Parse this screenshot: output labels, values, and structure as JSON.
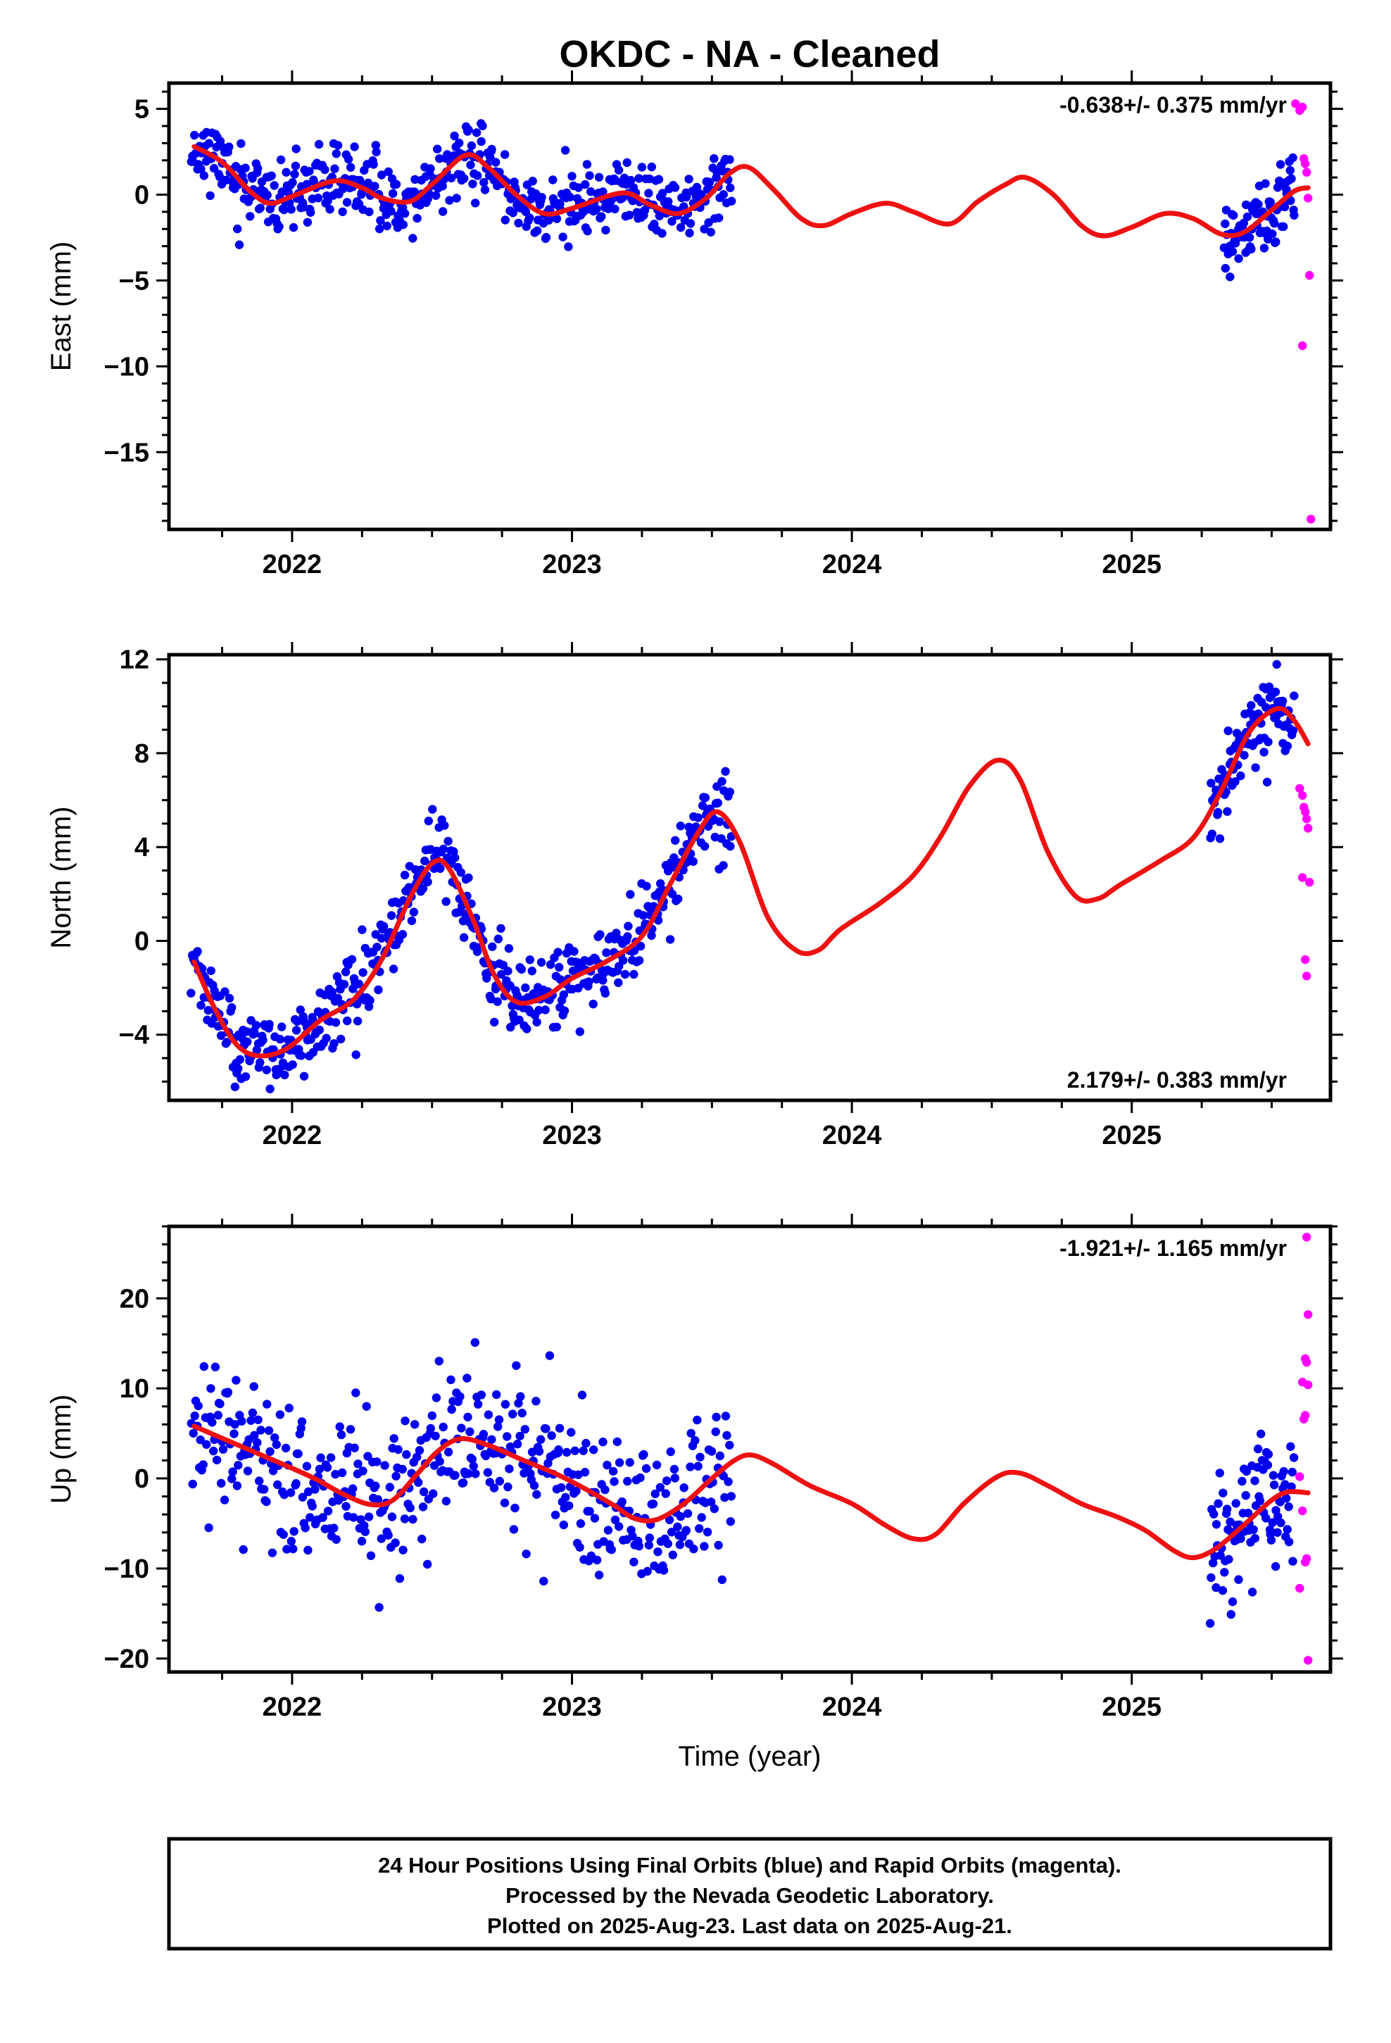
{
  "title": "OKDC  - NA - Cleaned",
  "xlabel": "Time (year)",
  "footer": {
    "line1": "24 Hour Positions Using Final Orbits (blue) and Rapid Orbits (magenta).",
    "line2": "Processed by the Nevada Geodetic Laboratory.",
    "line3": "Plotted on 2025-Aug-23. Last data on 2025-Aug-21."
  },
  "colors": {
    "final": "#0000ee",
    "rapid": "#ff00ff",
    "model": "#ee1111"
  },
  "chart_data": [
    {
      "type": "scatter",
      "ylabel": "East (mm)",
      "rate_text": "-0.638+/- 0.375 mm/yr",
      "rate_position": "top-right",
      "xlim": [
        2021.56,
        2025.71
      ],
      "ylim": [
        -19.5,
        6.5
      ],
      "x_ticks": [
        2022,
        2023,
        2024,
        2025
      ],
      "y_ticks": [
        5,
        0,
        -5,
        -10,
        -15
      ],
      "y_tick_labels": [
        "5",
        "0",
        "−5",
        "−10",
        "−15"
      ],
      "minor_y_step": 1,
      "final_orbit_data": {
        "seed": 11,
        "noise_std": 1.0,
        "ranges": [
          [
            2021.64,
            2023.57,
            520
          ],
          [
            2025.33,
            2025.58,
            90
          ]
        ]
      },
      "rapid_orbit_points": [
        [
          2025.585,
          5.3
        ],
        [
          2025.6,
          4.9
        ],
        [
          2025.61,
          5.1
        ],
        [
          2025.615,
          2.1
        ],
        [
          2025.62,
          1.8
        ],
        [
          2025.625,
          1.3
        ],
        [
          2025.63,
          -0.2
        ],
        [
          2025.635,
          -4.7
        ],
        [
          2025.61,
          -8.8
        ],
        [
          2025.64,
          -18.9
        ]
      ],
      "model": [
        [
          2021.65,
          2.8
        ],
        [
          2021.75,
          1.9
        ],
        [
          2021.85,
          0.2
        ],
        [
          2021.92,
          -0.5
        ],
        [
          2022.0,
          -0.1
        ],
        [
          2022.15,
          0.8
        ],
        [
          2022.25,
          0.4
        ],
        [
          2022.32,
          -0.2
        ],
        [
          2022.42,
          -0.4
        ],
        [
          2022.5,
          0.6
        ],
        [
          2022.62,
          2.3
        ],
        [
          2022.7,
          1.6
        ],
        [
          2022.8,
          0.0
        ],
        [
          2022.9,
          -1.1
        ],
        [
          2023.0,
          -0.8
        ],
        [
          2023.18,
          0.1
        ],
        [
          2023.28,
          -0.6
        ],
        [
          2023.38,
          -1.1
        ],
        [
          2023.48,
          -0.2
        ],
        [
          2023.56,
          1.2
        ],
        [
          2023.63,
          1.6
        ],
        [
          2023.72,
          0.3
        ],
        [
          2023.82,
          -1.4
        ],
        [
          2023.9,
          -1.8
        ],
        [
          2024.0,
          -1.1
        ],
        [
          2024.12,
          -0.5
        ],
        [
          2024.22,
          -1.0
        ],
        [
          2024.35,
          -1.7
        ],
        [
          2024.45,
          -0.4
        ],
        [
          2024.55,
          0.6
        ],
        [
          2024.62,
          1.0
        ],
        [
          2024.72,
          0.0
        ],
        [
          2024.82,
          -1.8
        ],
        [
          2024.9,
          -2.4
        ],
        [
          2025.0,
          -1.9
        ],
        [
          2025.12,
          -1.1
        ],
        [
          2025.22,
          -1.4
        ],
        [
          2025.32,
          -2.3
        ],
        [
          2025.4,
          -2.2
        ],
        [
          2025.5,
          -0.9
        ],
        [
          2025.58,
          0.2
        ],
        [
          2025.63,
          0.4
        ]
      ]
    },
    {
      "type": "scatter",
      "ylabel": "North (mm)",
      "rate_text": "2.179+/- 0.383 mm/yr",
      "rate_position": "bottom-right",
      "xlim": [
        2021.56,
        2025.71
      ],
      "ylim": [
        -6.8,
        12.2
      ],
      "x_ticks": [
        2022,
        2023,
        2024,
        2025
      ],
      "y_ticks": [
        12,
        8,
        4,
        0,
        -4
      ],
      "y_tick_labels": [
        "12",
        "8",
        "4",
        "0",
        "−4"
      ],
      "minor_y_step": 1,
      "final_orbit_data": {
        "seed": 23,
        "noise_std": 0.85,
        "ranges": [
          [
            2021.64,
            2023.57,
            520
          ],
          [
            2025.28,
            2025.58,
            95
          ]
        ]
      },
      "rapid_orbit_points": [
        [
          2025.6,
          6.5
        ],
        [
          2025.61,
          6.2
        ],
        [
          2025.615,
          5.7
        ],
        [
          2025.62,
          5.5
        ],
        [
          2025.625,
          5.2
        ],
        [
          2025.63,
          4.8
        ],
        [
          2025.61,
          2.7
        ],
        [
          2025.635,
          2.5
        ],
        [
          2025.62,
          -0.8
        ],
        [
          2025.625,
          -1.5
        ]
      ],
      "model": [
        [
          2021.65,
          -0.9
        ],
        [
          2021.72,
          -2.8
        ],
        [
          2021.8,
          -4.4
        ],
        [
          2021.88,
          -4.9
        ],
        [
          2021.98,
          -4.6
        ],
        [
          2022.1,
          -3.4
        ],
        [
          2022.22,
          -2.5
        ],
        [
          2022.32,
          -0.8
        ],
        [
          2022.42,
          1.8
        ],
        [
          2022.5,
          3.3
        ],
        [
          2022.56,
          3.1
        ],
        [
          2022.65,
          0.8
        ],
        [
          2022.72,
          -1.4
        ],
        [
          2022.8,
          -2.6
        ],
        [
          2022.9,
          -2.4
        ],
        [
          2023.0,
          -1.6
        ],
        [
          2023.12,
          -0.9
        ],
        [
          2023.25,
          0.2
        ],
        [
          2023.35,
          2.4
        ],
        [
          2023.45,
          4.6
        ],
        [
          2023.52,
          5.5
        ],
        [
          2023.6,
          4.2
        ],
        [
          2023.7,
          1.0
        ],
        [
          2023.8,
          -0.4
        ],
        [
          2023.88,
          -0.4
        ],
        [
          2023.96,
          0.5
        ],
        [
          2024.1,
          1.6
        ],
        [
          2024.22,
          2.8
        ],
        [
          2024.32,
          4.5
        ],
        [
          2024.42,
          6.6
        ],
        [
          2024.52,
          7.7
        ],
        [
          2024.6,
          6.9
        ],
        [
          2024.7,
          3.8
        ],
        [
          2024.8,
          1.9
        ],
        [
          2024.88,
          1.8
        ],
        [
          2024.96,
          2.4
        ],
        [
          2025.1,
          3.4
        ],
        [
          2025.22,
          4.4
        ],
        [
          2025.32,
          6.4
        ],
        [
          2025.42,
          8.9
        ],
        [
          2025.52,
          9.9
        ],
        [
          2025.58,
          9.4
        ],
        [
          2025.63,
          8.4
        ]
      ]
    },
    {
      "type": "scatter",
      "ylabel": "Up (mm)",
      "rate_text": "-1.921+/- 1.165 mm/yr",
      "rate_position": "top-right",
      "xlim": [
        2021.56,
        2025.71
      ],
      "ylim": [
        -21.5,
        28
      ],
      "x_ticks": [
        2022,
        2023,
        2024,
        2025
      ],
      "y_ticks": [
        20,
        10,
        0,
        -10,
        -20
      ],
      "y_tick_labels": [
        "20",
        "10",
        "0",
        "−10",
        "−20"
      ],
      "minor_y_step": 2,
      "final_orbit_data": {
        "seed": 37,
        "noise_std": 4.2,
        "ranges": [
          [
            2021.64,
            2023.57,
            470
          ],
          [
            2025.28,
            2025.58,
            90
          ]
        ]
      },
      "rapid_orbit_points": [
        [
          2025.625,
          26.8
        ],
        [
          2025.63,
          18.2
        ],
        [
          2025.62,
          13.3
        ],
        [
          2025.625,
          12.9
        ],
        [
          2025.61,
          10.7
        ],
        [
          2025.63,
          10.4
        ],
        [
          2025.62,
          7.0
        ],
        [
          2025.615,
          6.6
        ],
        [
          2025.6,
          0.2
        ],
        [
          2025.61,
          -3.6
        ],
        [
          2025.625,
          -8.9
        ],
        [
          2025.62,
          -9.3
        ],
        [
          2025.6,
          -12.2
        ],
        [
          2025.63,
          -20.2
        ]
      ],
      "model": [
        [
          2021.65,
          5.8
        ],
        [
          2021.8,
          3.8
        ],
        [
          2021.95,
          1.8
        ],
        [
          2022.08,
          0.0
        ],
        [
          2022.18,
          -1.7
        ],
        [
          2022.28,
          -2.9
        ],
        [
          2022.36,
          -2.4
        ],
        [
          2022.45,
          0.6
        ],
        [
          2022.52,
          3.0
        ],
        [
          2022.6,
          4.4
        ],
        [
          2022.7,
          3.7
        ],
        [
          2022.82,
          2.1
        ],
        [
          2022.95,
          0.4
        ],
        [
          2023.05,
          -1.2
        ],
        [
          2023.15,
          -3.0
        ],
        [
          2023.22,
          -4.4
        ],
        [
          2023.3,
          -4.6
        ],
        [
          2023.4,
          -2.8
        ],
        [
          2023.5,
          0.0
        ],
        [
          2023.58,
          2.0
        ],
        [
          2023.64,
          2.6
        ],
        [
          2023.72,
          1.6
        ],
        [
          2023.85,
          -0.8
        ],
        [
          2024.0,
          -2.8
        ],
        [
          2024.12,
          -5.2
        ],
        [
          2024.22,
          -6.7
        ],
        [
          2024.3,
          -6.2
        ],
        [
          2024.4,
          -2.8
        ],
        [
          2024.52,
          0.2
        ],
        [
          2024.6,
          0.6
        ],
        [
          2024.7,
          -0.8
        ],
        [
          2024.82,
          -2.8
        ],
        [
          2024.95,
          -4.3
        ],
        [
          2025.05,
          -5.8
        ],
        [
          2025.15,
          -8.0
        ],
        [
          2025.22,
          -8.8
        ],
        [
          2025.3,
          -7.8
        ],
        [
          2025.4,
          -5.2
        ],
        [
          2025.5,
          -2.4
        ],
        [
          2025.56,
          -1.5
        ],
        [
          2025.63,
          -1.6
        ]
      ]
    }
  ]
}
